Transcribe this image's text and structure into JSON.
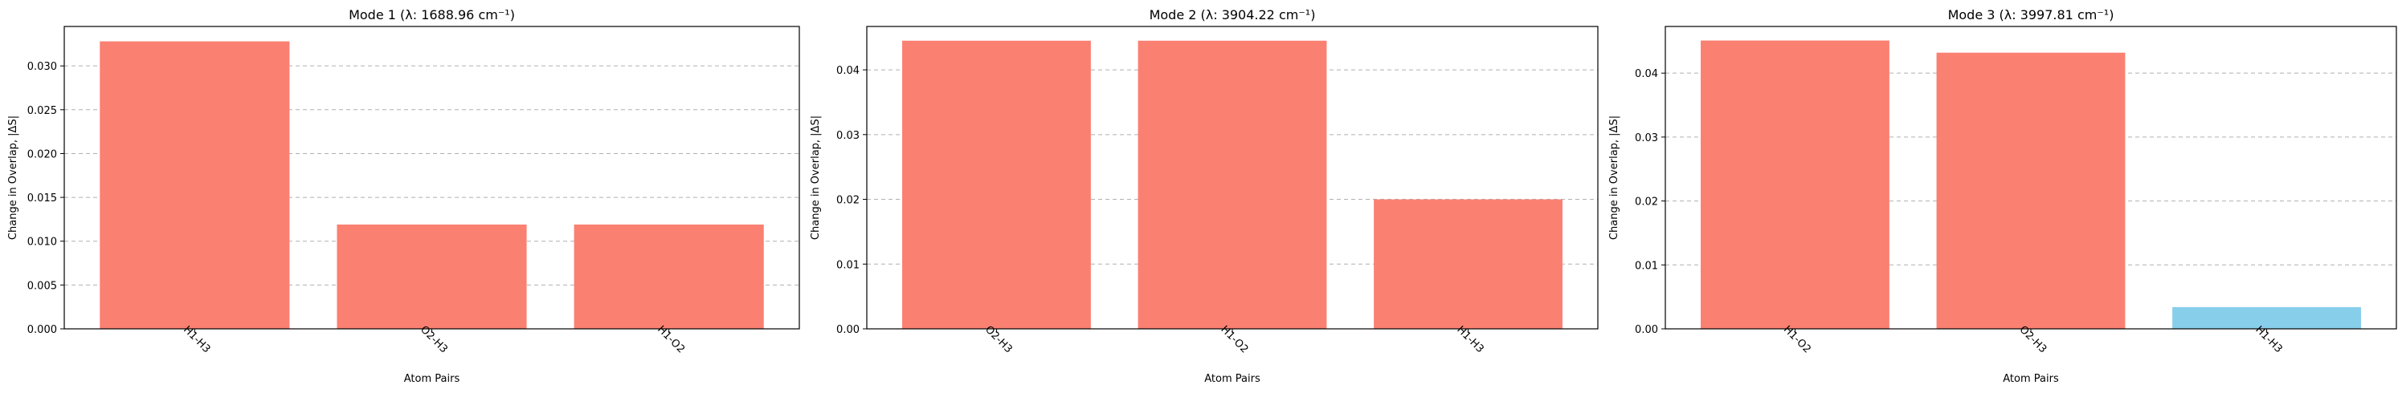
{
  "chart_data": [
    {
      "type": "bar",
      "title": "Mode 1 (λ: 1688.96 cm⁻¹)",
      "xlabel": "Atom Pairs",
      "ylabel": "Change in Overlap, |ΔS|",
      "categories": [
        "H1-H3",
        "O2-H3",
        "H1-O2"
      ],
      "values": [
        0.0328,
        0.0119,
        0.0119
      ],
      "colors": [
        "#fa8072",
        "#fa8072",
        "#fa8072"
      ],
      "ylim": [
        0,
        0.0345
      ],
      "yticks": [
        0,
        0.005,
        0.01,
        0.015,
        0.02,
        0.025,
        0.03
      ],
      "ytick_labels": [
        "0.000",
        "0.005",
        "0.010",
        "0.015",
        "0.020",
        "0.025",
        "0.030"
      ],
      "grid": "y"
    },
    {
      "type": "bar",
      "title": "Mode 2 (λ: 3904.22 cm⁻¹)",
      "xlabel": "Atom Pairs",
      "ylabel": "Change in Overlap, |ΔS|",
      "categories": [
        "O2-H3",
        "H1-O2",
        "H1-H3"
      ],
      "values": [
        0.0445,
        0.0445,
        0.02
      ],
      "colors": [
        "#fa8072",
        "#fa8072",
        "#fa8072"
      ],
      "ylim": [
        0,
        0.0467
      ],
      "yticks": [
        0,
        0.01,
        0.02,
        0.03,
        0.04
      ],
      "ytick_labels": [
        "0.00",
        "0.01",
        "0.02",
        "0.03",
        "0.04"
      ],
      "grid": "y"
    },
    {
      "type": "bar",
      "title": "Mode 3 (λ: 3997.81 cm⁻¹)",
      "xlabel": "Atom Pairs",
      "ylabel": "Change in Overlap, |ΔS|",
      "categories": [
        "H1-O2",
        "O2-H3",
        "H1-H3"
      ],
      "values": [
        0.0451,
        0.0432,
        0.0034
      ],
      "colors": [
        "#fa8072",
        "#fa8072",
        "#87ceeb"
      ],
      "ylim": [
        0,
        0.0473
      ],
      "yticks": [
        0,
        0.01,
        0.02,
        0.03,
        0.04
      ],
      "ytick_labels": [
        "0.00",
        "0.01",
        "0.02",
        "0.03",
        "0.04"
      ],
      "grid": "y"
    }
  ]
}
